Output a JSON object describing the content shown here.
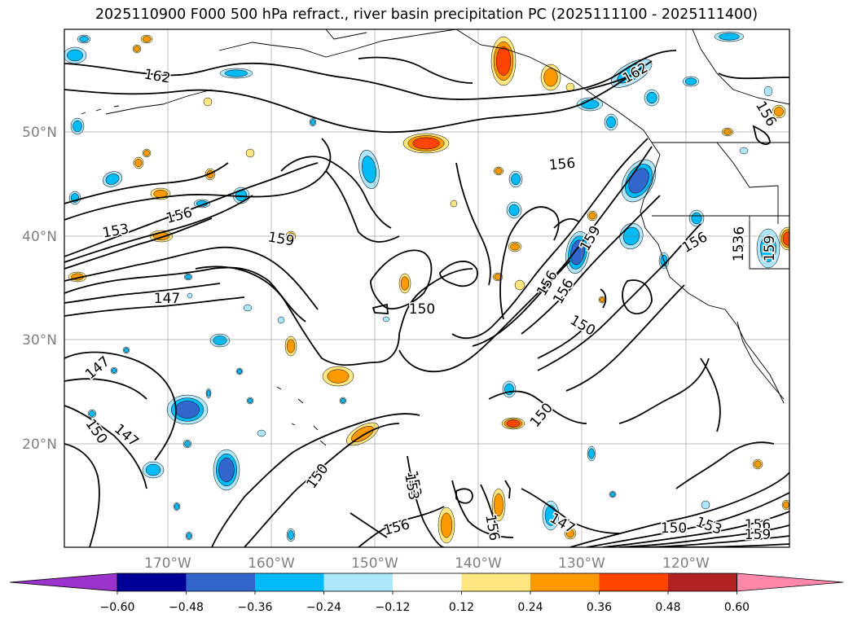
{
  "title": "2025110900 F000 500 hPa refract., river basin precipitation PC (2025111100 - 2025111400)",
  "map": {
    "lat_labels": [
      "50°N",
      "40°N",
      "30°N",
      "20°N"
    ],
    "lon_labels": [
      "170°W",
      "160°W",
      "150°W",
      "140°W",
      "130°W",
      "120°W"
    ],
    "axis_label_color": "#808080",
    "gridline_color": "#808080",
    "contour_labels": [
      {
        "text": "162"
      },
      {
        "text": "162"
      },
      {
        "text": "156"
      },
      {
        "text": "156"
      },
      {
        "text": "153"
      },
      {
        "text": "156"
      },
      {
        "text": "159"
      },
      {
        "text": "147"
      },
      {
        "text": "150"
      },
      {
        "text": "156"
      },
      {
        "text": "159"
      },
      {
        "text": "156"
      },
      {
        "text": "159"
      },
      {
        "text": "150"
      },
      {
        "text": "153"
      },
      {
        "text": "153"
      },
      {
        "text": "156"
      },
      {
        "text": "147"
      },
      {
        "text": "150"
      },
      {
        "text": "147"
      },
      {
        "text": "150"
      },
      {
        "text": "150"
      },
      {
        "text": "153"
      },
      {
        "text": "156"
      },
      {
        "text": "156"
      },
      {
        "text": "147"
      },
      {
        "text": "156"
      },
      {
        "text": "150"
      },
      {
        "text": "153"
      },
      {
        "text": "156"
      },
      {
        "text": "159"
      }
    ],
    "shaded_field": "river basin precipitation PC",
    "contour_field": "500 hPa refract."
  },
  "colorbar": {
    "tick_labels": [
      "−0.60",
      "−0.48",
      "−0.36",
      "−0.24",
      "−0.12",
      "0.12",
      "0.24",
      "0.36",
      "0.48",
      "0.60"
    ],
    "colors": [
      "#9933cc",
      "#000099",
      "#3366cc",
      "#00bbf5",
      "#aee6fb",
      "#ffffff",
      "#ffe680",
      "#ff9900",
      "#ff4400",
      "#b22222",
      "#ff88aa"
    ]
  }
}
